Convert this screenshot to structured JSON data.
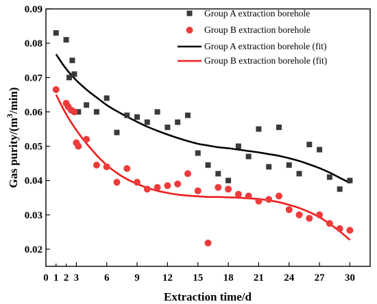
{
  "chart_data": {
    "type": "scatter",
    "xlabel": "Extraction time/d",
    "ylabel_parts": {
      "pre": "Gas purity/(m",
      "sup": "3",
      "post": "/min)"
    },
    "xlim": [
      0,
      32
    ],
    "ylim": [
      0.015,
      0.09
    ],
    "xticks": [
      0,
      3,
      6,
      9,
      12,
      15,
      18,
      21,
      24,
      27,
      30
    ],
    "minor_xticks": [
      1,
      2
    ],
    "xtick_labels": [
      "0",
      "3",
      "6",
      "9",
      "12",
      "15",
      "18",
      "21",
      "24",
      "27",
      "30",
      "1",
      "2"
    ],
    "yticks": [
      0.02,
      0.03,
      0.04,
      0.05,
      0.06,
      0.07,
      0.08,
      0.09
    ],
    "ytick_labels": [
      "0.02",
      "0.03",
      "0.04",
      "0.05",
      "0.06",
      "0.07",
      "0.08",
      "0.09"
    ],
    "grid": false,
    "legend_position": "top-right",
    "series": [
      {
        "name": "Group A extraction borehole",
        "kind": "scatter",
        "marker": "square",
        "color": "#3a3a3a",
        "x": [
          1,
          2,
          2.3,
          2.6,
          2.8,
          3.2,
          4,
          5,
          6,
          7,
          8,
          9,
          10,
          11,
          12,
          13,
          14,
          15,
          16,
          17,
          18,
          19,
          20,
          21,
          22,
          23,
          24,
          25,
          26,
          27,
          28,
          29,
          30
        ],
        "y": [
          0.083,
          0.081,
          0.07,
          0.075,
          0.071,
          0.06,
          0.062,
          0.06,
          0.064,
          0.054,
          0.059,
          0.0585,
          0.057,
          0.06,
          0.0555,
          0.057,
          0.059,
          0.048,
          0.0445,
          0.042,
          0.04,
          0.05,
          0.047,
          0.055,
          0.044,
          0.0555,
          0.0445,
          0.042,
          0.0505,
          0.049,
          0.041,
          0.0375,
          0.04
        ]
      },
      {
        "name": "Group B extraction borehole",
        "kind": "scatter",
        "marker": "circle",
        "color": "#ee3b3b",
        "x": [
          1,
          2,
          2.2,
          2.5,
          2.8,
          3,
          3.2,
          4,
          5,
          6,
          7,
          8,
          9,
          10,
          11,
          12,
          13,
          14,
          15,
          16,
          17,
          18,
          19,
          20,
          21,
          22,
          23,
          24,
          25,
          26,
          27,
          28,
          29,
          30
        ],
        "y": [
          0.0665,
          0.0625,
          0.0615,
          0.0605,
          0.06,
          0.051,
          0.05,
          0.052,
          0.0445,
          0.044,
          0.0395,
          0.0435,
          0.0395,
          0.0375,
          0.038,
          0.0385,
          0.039,
          0.042,
          0.037,
          0.0218,
          0.038,
          0.0375,
          0.036,
          0.0355,
          0.034,
          0.0345,
          0.0355,
          0.0315,
          0.03,
          0.029,
          0.03,
          0.0275,
          0.026,
          0.0255
        ]
      },
      {
        "name": "Group A extraction borehole (fit)",
        "kind": "line",
        "color": "#000000",
        "x": [
          1,
          2,
          3,
          4,
          5,
          6,
          7,
          8,
          9,
          10,
          11,
          12,
          13,
          14,
          15,
          16,
          17,
          18,
          19,
          20,
          21,
          22,
          23,
          24,
          25,
          26,
          27,
          28,
          29,
          30
        ],
        "y": [
          0.0768,
          0.0725,
          0.0692,
          0.0665,
          0.0642,
          0.062,
          0.0602,
          0.0586,
          0.0571,
          0.0557,
          0.0545,
          0.0534,
          0.0524,
          0.0515,
          0.0507,
          0.0502,
          0.0497,
          0.0494,
          0.049,
          0.0486,
          0.0482,
          0.0477,
          0.0472,
          0.0465,
          0.0457,
          0.0447,
          0.0436,
          0.0423,
          0.0408,
          0.0393
        ]
      },
      {
        "name": "Group B extraction borehole (fit)",
        "kind": "line",
        "color": "#ee1c1c",
        "x": [
          1,
          2,
          3,
          4,
          5,
          6,
          7,
          8,
          9,
          10,
          11,
          12,
          13,
          14,
          15,
          16,
          17,
          18,
          19,
          20,
          21,
          22,
          23,
          24,
          25,
          26,
          27,
          28,
          29,
          30
        ],
        "y": [
          0.065,
          0.0593,
          0.0547,
          0.0508,
          0.0474,
          0.0445,
          0.0422,
          0.0404,
          0.039,
          0.0379,
          0.037,
          0.0364,
          0.0359,
          0.0356,
          0.0354,
          0.0352,
          0.0352,
          0.0351,
          0.035,
          0.0348,
          0.0346,
          0.0342,
          0.0337,
          0.0329,
          0.032,
          0.0308,
          0.0293,
          0.0274,
          0.0252,
          0.0227
        ]
      }
    ]
  }
}
